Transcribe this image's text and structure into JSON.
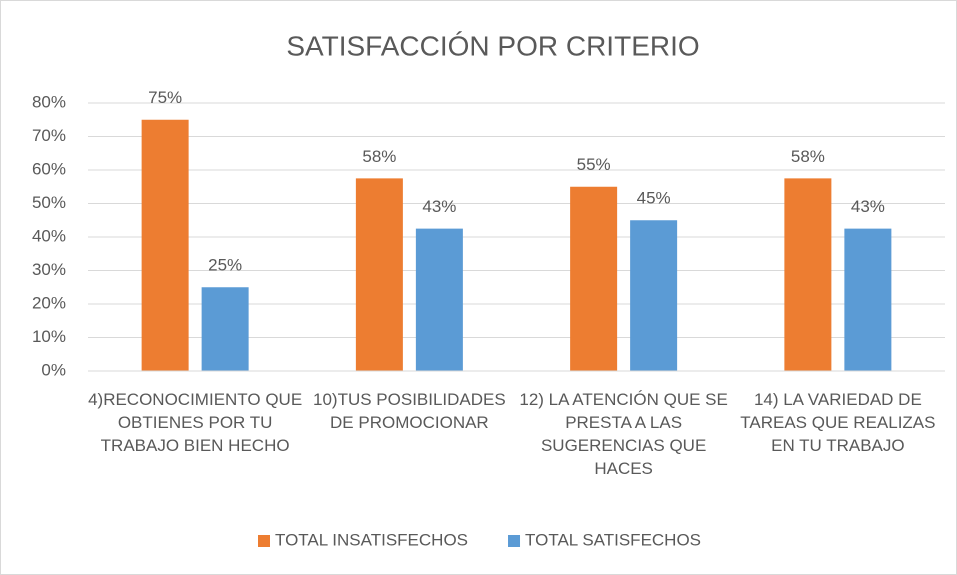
{
  "chart_data": {
    "type": "bar",
    "title": "SATISFACCIÓN POR CRITERIO",
    "categories": [
      "4)RECONOCIMIENTO QUE OBTIENES POR TU TRABAJO BIEN HECHO",
      "10)TUS POSIBILIDADES DE PROMOCIONAR",
      "12) LA ATENCIÓN QUE SE PRESTA A LAS SUGERENCIAS QUE HACES",
      "14) LA VARIEDAD DE TAREAS QUE REALIZAS EN TU TRABAJO"
    ],
    "series": [
      {
        "name": "TOTAL INSATISFECHOS",
        "color": "#ed7d31",
        "values": [
          75,
          57.5,
          55,
          57.5
        ],
        "value_labels": [
          "75%",
          "58%",
          "55%",
          "58%"
        ]
      },
      {
        "name": "TOTAL SATISFECHOS",
        "color": "#5b9bd5",
        "values": [
          25,
          42.5,
          45,
          42.5
        ],
        "value_labels": [
          "25%",
          "43%",
          "45%",
          "43%"
        ]
      }
    ],
    "ylim": [
      0,
      80
    ],
    "yticks": [
      {
        "value": 0,
        "label": "0%"
      },
      {
        "value": 10,
        "label": "10%"
      },
      {
        "value": 20,
        "label": "20%"
      },
      {
        "value": 30,
        "label": "30%"
      },
      {
        "value": 40,
        "label": "40%"
      },
      {
        "value": 50,
        "label": "50%"
      },
      {
        "value": 60,
        "label": "60%"
      },
      {
        "value": 70,
        "label": "70%"
      },
      {
        "value": 80,
        "label": "80%"
      }
    ],
    "grid": true,
    "legend": "bottom"
  }
}
